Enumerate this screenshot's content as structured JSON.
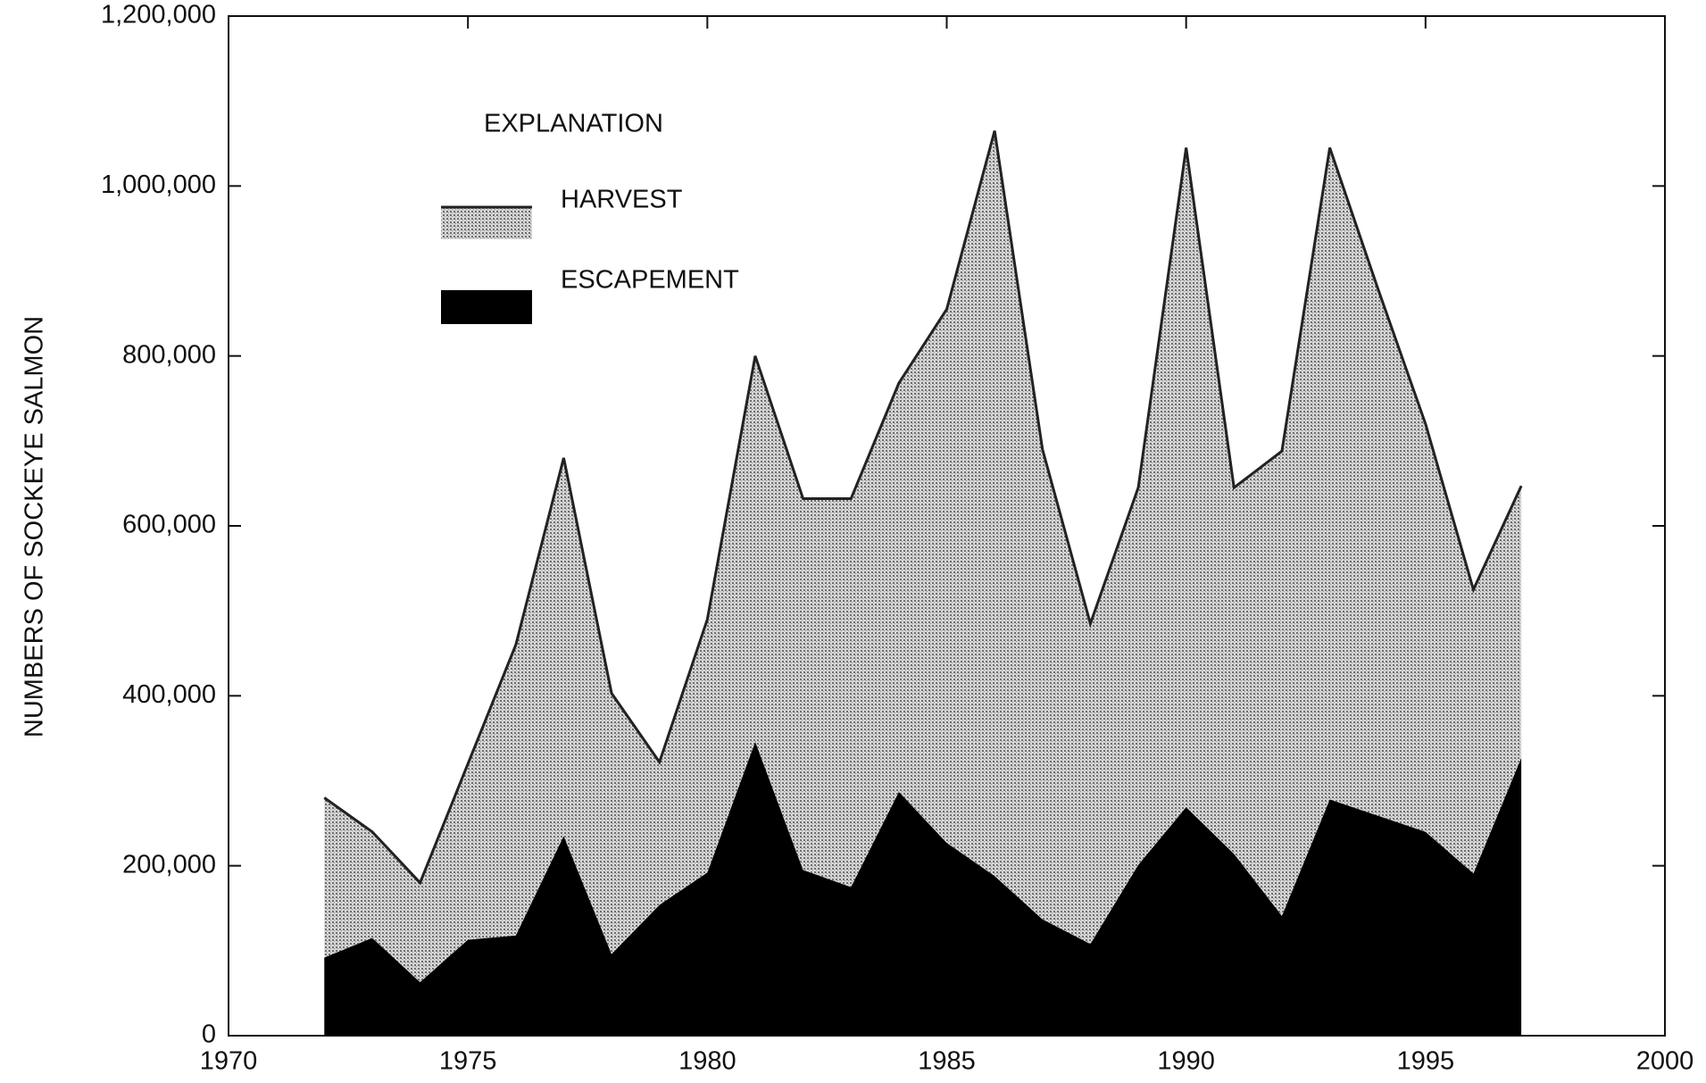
{
  "chart_data": {
    "type": "stacked-area",
    "y_label": "NUMBERS OF SOCKEYE SALMON",
    "legend_title": "EXPLANATION",
    "x": [
      1972,
      1973,
      1974,
      1975,
      1976,
      1977,
      1978,
      1979,
      1980,
      1981,
      1982,
      1983,
      1984,
      1985,
      1986,
      1987,
      1988,
      1989,
      1990,
      1991,
      1992,
      1993,
      1994,
      1995,
      1996,
      1997
    ],
    "series": [
      {
        "name": "ESCAPEMENT",
        "color": "#000000",
        "values": [
          92000,
          115000,
          63000,
          113000,
          118000,
          235000,
          96000,
          154000,
          192000,
          346000,
          195000,
          175000,
          287000,
          227000,
          188000,
          137000,
          108000,
          201000,
          269000,
          214000,
          141000,
          278000,
          259000,
          240000,
          191000,
          327000
        ]
      },
      {
        "name": "HARVEST",
        "color": "#9a9a9a",
        "values": [
          188000,
          125000,
          117000,
          207000,
          342000,
          445000,
          307000,
          168000,
          298000,
          454000,
          437000,
          457000,
          481000,
          628000,
          877000,
          553000,
          377000,
          444000,
          776000,
          431000,
          547000,
          767000,
          621000,
          480000,
          334000,
          320000
        ]
      }
    ],
    "xlim": [
      1970,
      2000
    ],
    "xticks": [
      1970,
      1975,
      1980,
      1985,
      1990,
      1995,
      2000
    ],
    "ylim": [
      0,
      1200000
    ],
    "yticks": [
      0,
      {
        "value": 200000,
        "label": "200,000"
      },
      {
        "value": 400000,
        "label": "400,000"
      },
      {
        "value": 600000,
        "label": "600,000"
      },
      {
        "value": 800000,
        "label": "800,000"
      },
      {
        "value": 1000000,
        "label": "1,000,000"
      },
      {
        "value": 1200000,
        "label": "1,200,000"
      }
    ]
  }
}
